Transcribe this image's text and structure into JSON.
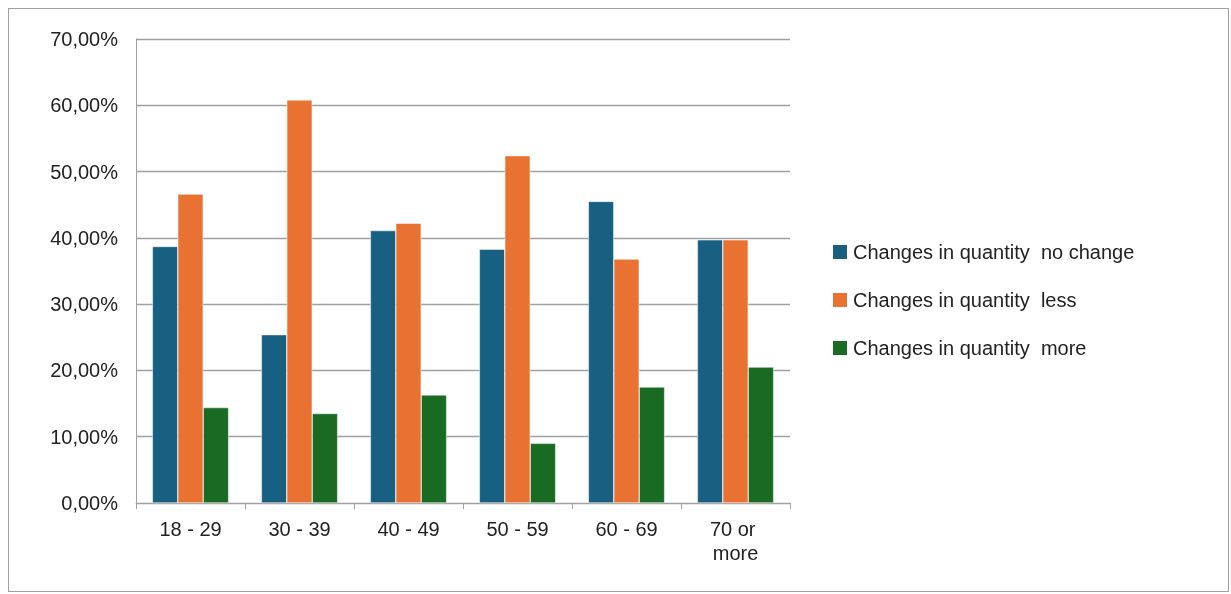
{
  "chart_data": {
    "type": "bar",
    "categories": [
      "18 - 29",
      "30 - 39",
      "40 - 49",
      "50 - 59",
      "60 - 69",
      "70 or more"
    ],
    "series": [
      {
        "name": "Changes in quantity  no change",
        "color": "#176082",
        "values": [
          38.7,
          25.4,
          41.1,
          38.3,
          45.5,
          39.7
        ]
      },
      {
        "name": "Changes in quantity  less",
        "color": "#e97132",
        "values": [
          46.6,
          60.8,
          42.2,
          52.4,
          36.8,
          39.7
        ]
      },
      {
        "name": "Changes in quantity  more",
        "color": "#196b24",
        "values": [
          14.4,
          13.5,
          16.3,
          9.0,
          17.5,
          20.5
        ]
      }
    ],
    "ylim": [
      0,
      70
    ],
    "yticks": [
      {
        "value": 0,
        "label": "0,00%"
      },
      {
        "value": 10,
        "label": "10,00%"
      },
      {
        "value": 20,
        "label": "20,00%"
      },
      {
        "value": 30,
        "label": "30,00%"
      },
      {
        "value": 40,
        "label": "40,00%"
      },
      {
        "value": 50,
        "label": "50,00%"
      },
      {
        "value": 60,
        "label": "60,00%"
      },
      {
        "value": 70,
        "label": "70,00%"
      }
    ],
    "grid": "y",
    "legend": "right"
  }
}
